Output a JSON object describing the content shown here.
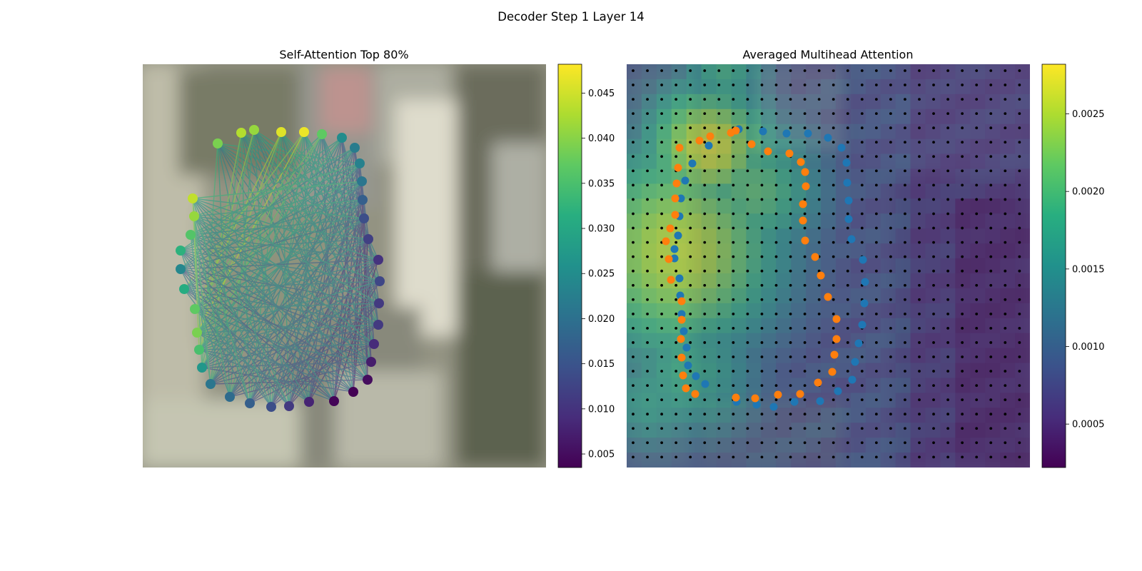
{
  "figure_title": "Decoder Step 1 Layer 14",
  "chart_data": [
    {
      "type": "network",
      "title": "Self-Attention Top 80%",
      "colormap": "viridis",
      "colorbar": {
        "min": 0.0035,
        "max": 0.0482,
        "ticks": [
          "0.005",
          "0.010",
          "0.015",
          "0.020",
          "0.025",
          "0.030",
          "0.035",
          "0.040",
          "0.045"
        ],
        "tick_values": [
          0.005,
          0.01,
          0.015,
          0.02,
          0.025,
          0.03,
          0.035,
          0.04,
          0.045
        ]
      },
      "node_values": [
        0.039,
        0.043,
        0.041,
        0.046,
        0.047,
        0.037,
        0.025,
        0.022,
        0.023,
        0.021,
        0.017,
        0.014,
        0.012,
        0.01,
        0.013,
        0.011,
        0.011,
        0.009,
        0.007,
        0.005,
        0.003,
        0.004,
        0.008,
        0.011,
        0.014,
        0.017,
        0.019,
        0.021,
        0.027,
        0.035,
        0.039,
        0.037,
        0.031,
        0.024,
        0.032,
        0.036,
        0.041,
        0.044
      ],
      "edge_weight_range": [
        0.012,
        0.047
      ],
      "background": "blurred photo"
    },
    {
      "type": "heatmap",
      "title": "Averaged Multihead Attention",
      "colormap": "viridis",
      "grid": "27x27",
      "colorbar": {
        "min": 0.00022,
        "max": 0.00282,
        "ticks": [
          "0.0005",
          "0.0010",
          "0.0015",
          "0.0020",
          "0.0025"
        ],
        "tick_values": [
          0.0005,
          0.001,
          0.0015,
          0.002,
          0.0025
        ]
      },
      "overlay_series": [
        {
          "color": "#1f77b4"
        },
        {
          "color": "#ff7f0e"
        }
      ],
      "background": "blurred photo"
    }
  ]
}
